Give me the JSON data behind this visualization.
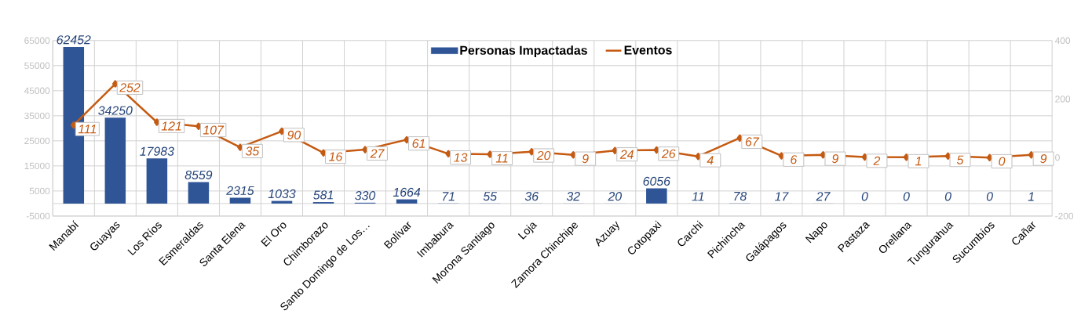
{
  "chart_data": {
    "type": "bar",
    "categories": [
      "Manabí",
      "Guayas",
      "Los Ríos",
      "Esmeraldas",
      "Santa Elena",
      "El Oro",
      "Chimborazo",
      "Santo Domingo de Los…",
      "Bolívar",
      "Imbabura",
      "Morona Santiago",
      "Loja",
      "Zamora Chinchipe",
      "Azuay",
      "Cotopaxi",
      "Carchi",
      "Pichincha",
      "Galápagos",
      "Napo",
      "Pastaza",
      "Orellana",
      "Tungurahua",
      "Sucumbíos",
      "Cañar"
    ],
    "series": [
      {
        "name": "Personas Impactadas",
        "color": "#2f5597",
        "values": [
          62452,
          34250,
          17983,
          8559,
          2315,
          1033,
          581,
          330,
          1664,
          71,
          55,
          36,
          32,
          20,
          6056,
          11,
          78,
          17,
          27,
          0,
          0,
          0,
          0,
          1
        ]
      },
      {
        "name": "Eventos",
        "type": "line",
        "axis": "y2",
        "color": "#c55a11",
        "values": [
          111,
          252,
          121,
          107,
          35,
          90,
          16,
          27,
          61,
          13,
          11,
          20,
          9,
          24,
          26,
          4,
          67,
          6,
          9,
          2,
          1,
          5,
          0,
          9
        ]
      }
    ],
    "ylim": [
      -5000,
      65000
    ],
    "yticks": [
      -5000,
      5000,
      15000,
      25000,
      35000,
      45000,
      55000,
      65000
    ],
    "y2lim": [
      -200,
      400
    ],
    "y2ticks": [
      -200,
      0,
      200,
      400
    ],
    "grid": true,
    "legend": "top",
    "marker": "diamond",
    "data_labels": true
  }
}
